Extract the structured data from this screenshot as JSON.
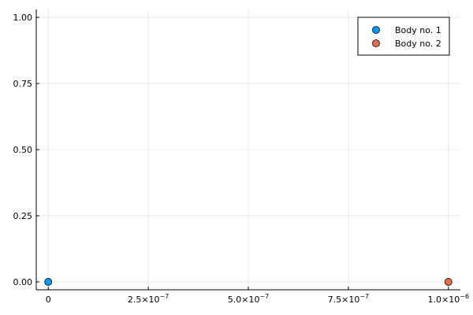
{
  "chart_data": {
    "type": "scatter",
    "title": "",
    "xlabel": "",
    "ylabel": "",
    "xlim": [
      -3e-08,
      1.03e-06
    ],
    "ylim": [
      -0.03,
      1.03
    ],
    "x_ticks": [
      {
        "value": 0,
        "label": "0"
      },
      {
        "value": 2.5e-07,
        "mantissa": "2.5×10",
        "exponent": "−7"
      },
      {
        "value": 5e-07,
        "mantissa": "5.0×10",
        "exponent": "−7"
      },
      {
        "value": 7.5e-07,
        "mantissa": "7.5×10",
        "exponent": "−7"
      },
      {
        "value": 1e-06,
        "mantissa": "1.0×10",
        "exponent": "−6"
      }
    ],
    "y_ticks": [
      {
        "value": 0.0,
        "label": "0.00"
      },
      {
        "value": 0.25,
        "label": "0.25"
      },
      {
        "value": 0.5,
        "label": "0.50"
      },
      {
        "value": 0.75,
        "label": "0.75"
      },
      {
        "value": 1.0,
        "label": "1.00"
      }
    ],
    "grid": true,
    "legend_position": "top-right",
    "series": [
      {
        "name": "Body no. 1",
        "color": "#009af9",
        "points": [
          {
            "x": 0,
            "y": 0
          }
        ]
      },
      {
        "name": "Body no. 2",
        "color": "#e26f46",
        "points": [
          {
            "x": 1e-06,
            "y": 0
          }
        ]
      }
    ]
  }
}
